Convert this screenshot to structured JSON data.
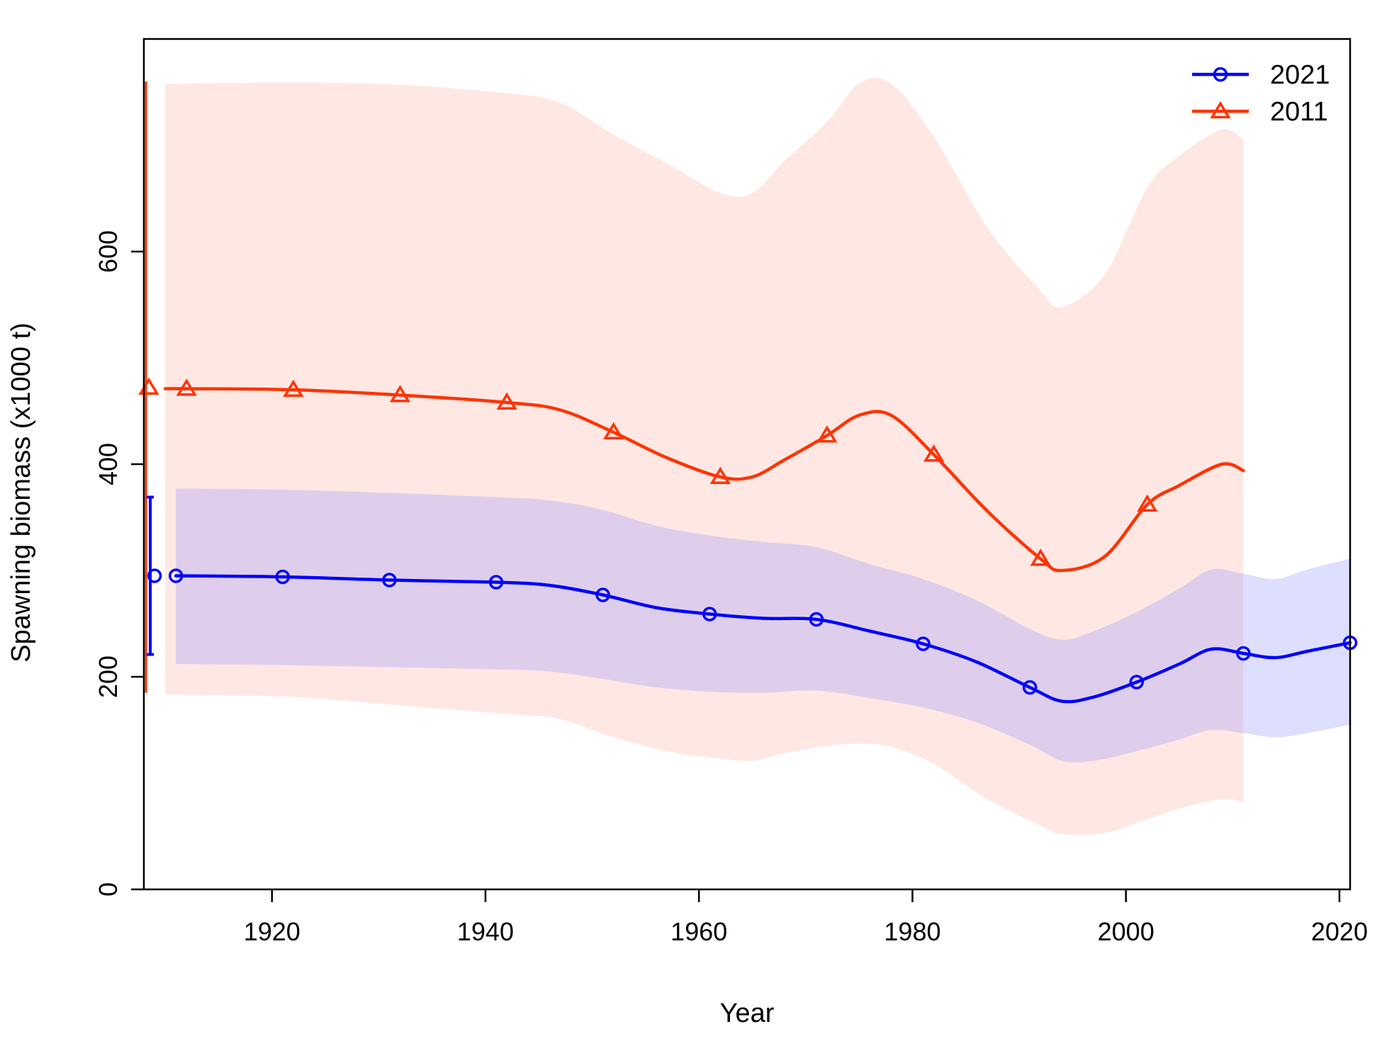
{
  "chart_data": {
    "type": "line",
    "title": "",
    "xlabel": "Year",
    "ylabel": "Spawning biomass (x1000 t)",
    "xlim": [
      1908,
      2021
    ],
    "ylim": [
      0,
      800
    ],
    "x_ticks": [
      "1920",
      "1940",
      "1960",
      "1980",
      "2000",
      "2020"
    ],
    "y_ticks": [
      "0",
      "200",
      "400",
      "600"
    ],
    "legend_position": "top-right",
    "grid": false,
    "series": [
      {
        "name": "2021",
        "color": "#0000ff",
        "band_color": "#9999ff",
        "marker": "circle",
        "initial_point": {
          "x": 1908.6,
          "y": 295,
          "lower": 221,
          "upper": 369
        },
        "points": [
          {
            "x": 1911,
            "y": 295,
            "lower": 212,
            "upper": 377
          },
          {
            "x": 1921,
            "y": 294,
            "lower": 211,
            "upper": 376
          },
          {
            "x": 1931,
            "y": 291,
            "lower": 209,
            "upper": 373
          },
          {
            "x": 1941,
            "y": 289,
            "lower": 207,
            "upper": 369
          },
          {
            "x": 1946,
            "y": 286,
            "lower": 205,
            "upper": 366
          },
          {
            "x": 1951,
            "y": 277,
            "lower": 198,
            "upper": 357
          },
          {
            "x": 1956,
            "y": 265,
            "lower": 190,
            "upper": 342
          },
          {
            "x": 1961,
            "y": 259,
            "lower": 186,
            "upper": 333
          },
          {
            "x": 1966,
            "y": 255,
            "lower": 185,
            "upper": 327
          },
          {
            "x": 1971,
            "y": 254,
            "lower": 187,
            "upper": 322
          },
          {
            "x": 1976,
            "y": 243,
            "lower": 180,
            "upper": 306
          },
          {
            "x": 1981,
            "y": 231,
            "lower": 171,
            "upper": 292
          },
          {
            "x": 1986,
            "y": 214,
            "lower": 157,
            "upper": 272
          },
          {
            "x": 1991,
            "y": 190,
            "lower": 136,
            "upper": 245
          },
          {
            "x": 1994,
            "y": 177,
            "lower": 121,
            "upper": 235
          },
          {
            "x": 1997,
            "y": 181,
            "lower": 121,
            "upper": 243
          },
          {
            "x": 2001,
            "y": 195,
            "lower": 130,
            "upper": 261
          },
          {
            "x": 2005,
            "y": 212,
            "lower": 141,
            "upper": 283
          },
          {
            "x": 2008,
            "y": 226,
            "lower": 150,
            "upper": 301
          },
          {
            "x": 2011,
            "y": 222,
            "lower": 147,
            "upper": 297
          },
          {
            "x": 2014,
            "y": 218,
            "lower": 143,
            "upper": 292
          },
          {
            "x": 2017,
            "y": 224,
            "lower": 147,
            "upper": 301
          },
          {
            "x": 2021,
            "y": 232,
            "lower": 155,
            "upper": 311
          }
        ]
      },
      {
        "name": "2011",
        "color": "#ff3300",
        "band_color": "#ffd6cc",
        "marker": "triangle",
        "initial_point": {
          "x": 1908.2,
          "y": 472,
          "lower": 185,
          "upper": 760
        },
        "points": [
          {
            "x": 1910,
            "y": 471,
            "lower": 183,
            "upper": 758
          },
          {
            "x": 1912,
            "y": 471,
            "lower": 183,
            "upper": 758
          },
          {
            "x": 1922,
            "y": 470,
            "lower": 181,
            "upper": 759
          },
          {
            "x": 1932,
            "y": 465,
            "lower": 173,
            "upper": 757
          },
          {
            "x": 1942,
            "y": 458,
            "lower": 165,
            "upper": 749
          },
          {
            "x": 1947,
            "y": 451,
            "lower": 160,
            "upper": 740
          },
          {
            "x": 1952,
            "y": 430,
            "lower": 143,
            "upper": 710
          },
          {
            "x": 1957,
            "y": 406,
            "lower": 130,
            "upper": 683
          },
          {
            "x": 1962,
            "y": 388,
            "lower": 123,
            "upper": 655
          },
          {
            "x": 1965,
            "y": 388,
            "lower": 121,
            "upper": 655
          },
          {
            "x": 1968,
            "y": 404,
            "lower": 128,
            "upper": 685
          },
          {
            "x": 1972,
            "y": 427,
            "lower": 135,
            "upper": 722
          },
          {
            "x": 1975,
            "y": 446,
            "lower": 137,
            "upper": 758
          },
          {
            "x": 1978,
            "y": 446,
            "lower": 134,
            "upper": 758
          },
          {
            "x": 1982,
            "y": 409,
            "lower": 118,
            "upper": 708
          },
          {
            "x": 1987,
            "y": 356,
            "lower": 85,
            "upper": 623
          },
          {
            "x": 1992,
            "y": 311,
            "lower": 60,
            "upper": 563
          },
          {
            "x": 1994,
            "y": 300,
            "lower": 52,
            "upper": 548
          },
          {
            "x": 1998,
            "y": 313,
            "lower": 53,
            "upper": 578
          },
          {
            "x": 2002,
            "y": 362,
            "lower": 66,
            "upper": 660
          },
          {
            "x": 2005,
            "y": 380,
            "lower": 76,
            "upper": 690
          },
          {
            "x": 2009,
            "y": 400,
            "lower": 85,
            "upper": 715
          },
          {
            "x": 2011,
            "y": 394,
            "lower": 82,
            "upper": 705
          }
        ],
        "marker_years": [
          1912,
          1922,
          1932,
          1942,
          1952,
          1962,
          1972,
          1982,
          1992,
          2002
        ]
      }
    ]
  }
}
